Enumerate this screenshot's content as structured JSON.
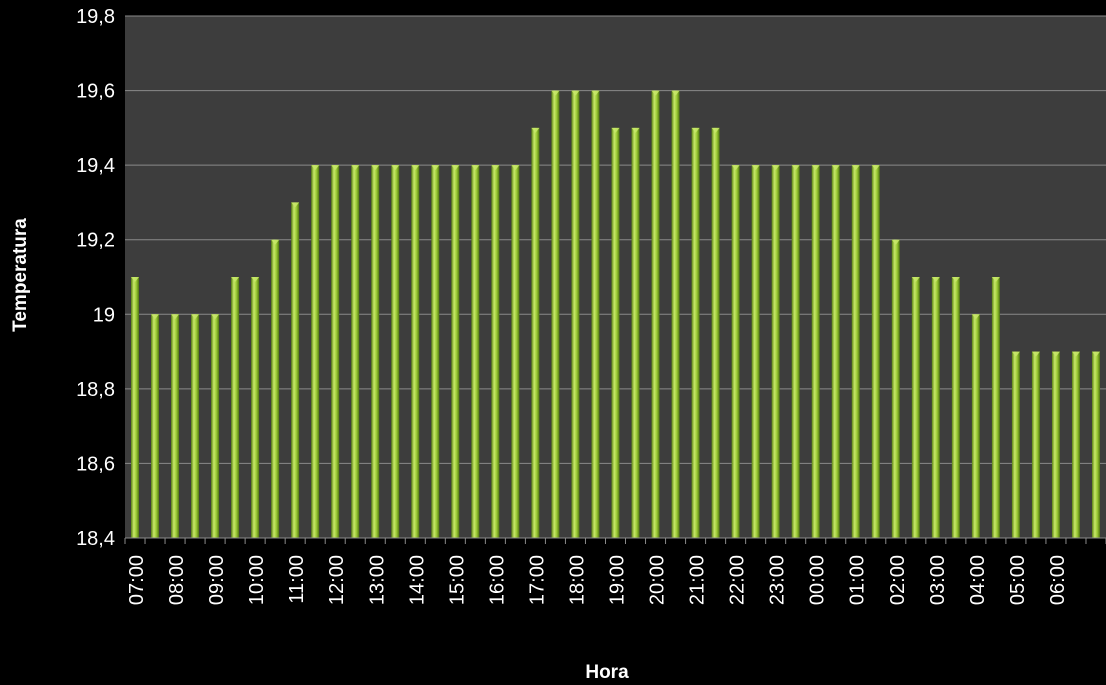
{
  "chart_data": {
    "type": "bar",
    "xlabel": "Hora",
    "ylabel": "Temperatura",
    "ylim": [
      18.4,
      19.8
    ],
    "yticks": [
      "18,4",
      "18,6",
      "18,8",
      "19",
      "19,2",
      "19,4",
      "19,6",
      "19,8"
    ],
    "xtick_labels": [
      "07:00",
      "08:00",
      "09:00",
      "10:00",
      "11:00",
      "12:00",
      "13:00",
      "14:00",
      "15:00",
      "16:00",
      "17:00",
      "18:00",
      "19:00",
      "20:00",
      "21:00",
      "22:00",
      "23:00",
      "00:00",
      "01:00",
      "02:00",
      "03:00",
      "04:00",
      "05:00",
      "06:00"
    ],
    "values": [
      19.1,
      19.0,
      19.0,
      19.0,
      19.0,
      19.1,
      19.1,
      19.2,
      19.3,
      19.4,
      19.4,
      19.4,
      19.4,
      19.4,
      19.4,
      19.4,
      19.4,
      19.4,
      19.4,
      19.4,
      19.5,
      19.6,
      19.6,
      19.6,
      19.5,
      19.5,
      19.6,
      19.6,
      19.5,
      19.5,
      19.4,
      19.4,
      19.4,
      19.4,
      19.4,
      19.4,
      19.4,
      19.4,
      19.2,
      19.1,
      19.1,
      19.1,
      19.0,
      19.1,
      18.9,
      18.9,
      18.9,
      18.9,
      18.9
    ],
    "grid": true,
    "colors": {
      "plot_background": "#3d3d3d",
      "page_background": "#000000",
      "bar_light": "#c8e86a",
      "bar_mid": "#8fbf2c",
      "bar_dark": "#4e7410",
      "gridline": "#8a8a8a",
      "text": "#ffffff"
    }
  }
}
